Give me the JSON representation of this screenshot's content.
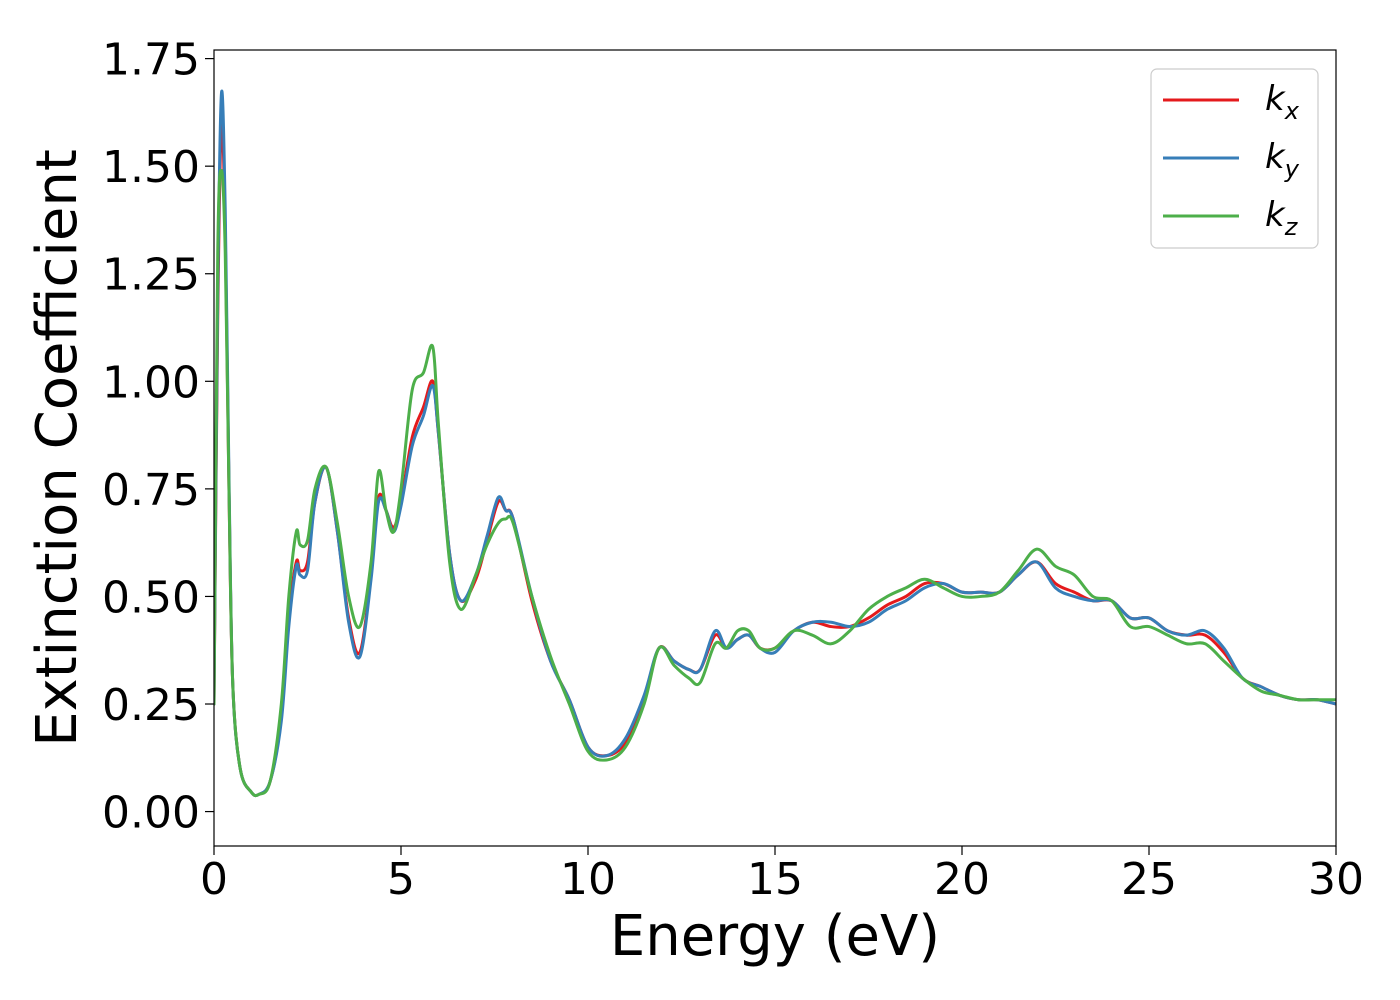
{
  "chart_data": {
    "type": "line",
    "xlabel": "Energy (eV)",
    "ylabel": "Extinction Coefficient",
    "xlim": [
      0,
      30
    ],
    "ylim": [
      -0.08,
      1.77
    ],
    "xticks": [
      0,
      5,
      10,
      15,
      20,
      25,
      30
    ],
    "xtick_labels": [
      "0",
      "5",
      "10",
      "15",
      "20",
      "25",
      "30"
    ],
    "yticks": [
      0.0,
      0.25,
      0.5,
      0.75,
      1.0,
      1.25,
      1.5,
      1.75
    ],
    "ytick_labels": [
      "0.00",
      "0.25",
      "0.50",
      "0.75",
      "1.00",
      "1.25",
      "1.50",
      "1.75"
    ],
    "grid": false,
    "legend_position": "top-right",
    "x": [
      0,
      0.1,
      0.2,
      0.3,
      0.4,
      0.5,
      0.7,
      1.0,
      1.2,
      1.5,
      1.8,
      2.0,
      2.2,
      2.3,
      2.5,
      2.7,
      3.0,
      3.3,
      3.6,
      3.9,
      4.2,
      4.4,
      4.6,
      4.8,
      5.0,
      5.3,
      5.6,
      5.85,
      6.0,
      6.3,
      6.6,
      7.0,
      7.3,
      7.6,
      7.8,
      8.0,
      8.5,
      9.0,
      9.5,
      10.0,
      10.5,
      11.0,
      11.5,
      11.9,
      12.3,
      12.7,
      13.0,
      13.4,
      13.7,
      14.0,
      14.3,
      14.6,
      15.0,
      15.5,
      16.0,
      16.5,
      17.0,
      17.5,
      18.0,
      18.5,
      19.0,
      19.5,
      20.0,
      20.5,
      21.0,
      21.5,
      22.0,
      22.5,
      23.0,
      23.5,
      24.0,
      24.5,
      25.0,
      25.5,
      26.0,
      26.5,
      27.0,
      27.5,
      28.0,
      28.5,
      29.0,
      29.5,
      30.0
    ],
    "series": [
      {
        "name": "k_x",
        "color": "#e41a1c",
        "values": [
          0.25,
          1.15,
          1.6,
          1.35,
          0.75,
          0.3,
          0.1,
          0.045,
          0.04,
          0.07,
          0.22,
          0.45,
          0.58,
          0.56,
          0.58,
          0.72,
          0.8,
          0.65,
          0.45,
          0.37,
          0.55,
          0.73,
          0.7,
          0.66,
          0.72,
          0.87,
          0.94,
          1.0,
          0.88,
          0.6,
          0.49,
          0.54,
          0.63,
          0.72,
          0.7,
          0.68,
          0.49,
          0.35,
          0.26,
          0.15,
          0.13,
          0.16,
          0.26,
          0.38,
          0.35,
          0.33,
          0.33,
          0.41,
          0.38,
          0.4,
          0.41,
          0.38,
          0.38,
          0.42,
          0.44,
          0.43,
          0.43,
          0.45,
          0.48,
          0.5,
          0.53,
          0.53,
          0.51,
          0.51,
          0.51,
          0.55,
          0.58,
          0.53,
          0.51,
          0.49,
          0.49,
          0.45,
          0.45,
          0.42,
          0.41,
          0.41,
          0.37,
          0.31,
          0.29,
          0.27,
          0.26,
          0.26,
          0.25
        ]
      },
      {
        "name": "k_y",
        "color": "#377eb8",
        "values": [
          0.25,
          1.2,
          1.67,
          1.4,
          0.78,
          0.3,
          0.1,
          0.045,
          0.04,
          0.07,
          0.21,
          0.43,
          0.57,
          0.55,
          0.56,
          0.72,
          0.8,
          0.65,
          0.44,
          0.36,
          0.54,
          0.72,
          0.7,
          0.65,
          0.71,
          0.85,
          0.92,
          0.99,
          0.88,
          0.6,
          0.49,
          0.55,
          0.64,
          0.73,
          0.7,
          0.68,
          0.5,
          0.35,
          0.26,
          0.15,
          0.13,
          0.17,
          0.27,
          0.38,
          0.35,
          0.33,
          0.33,
          0.42,
          0.38,
          0.4,
          0.41,
          0.38,
          0.37,
          0.42,
          0.44,
          0.44,
          0.43,
          0.44,
          0.47,
          0.49,
          0.52,
          0.53,
          0.51,
          0.51,
          0.51,
          0.55,
          0.58,
          0.52,
          0.5,
          0.49,
          0.49,
          0.45,
          0.45,
          0.42,
          0.41,
          0.42,
          0.38,
          0.31,
          0.29,
          0.27,
          0.26,
          0.26,
          0.25
        ]
      },
      {
        "name": "k_z",
        "color": "#4daf4a",
        "values": [
          0.25,
          1.3,
          1.49,
          1.3,
          0.75,
          0.3,
          0.1,
          0.045,
          0.04,
          0.07,
          0.25,
          0.5,
          0.65,
          0.62,
          0.63,
          0.75,
          0.8,
          0.67,
          0.5,
          0.43,
          0.58,
          0.79,
          0.7,
          0.65,
          0.75,
          0.98,
          1.02,
          1.08,
          0.9,
          0.58,
          0.47,
          0.55,
          0.62,
          0.67,
          0.68,
          0.67,
          0.5,
          0.36,
          0.25,
          0.14,
          0.12,
          0.15,
          0.25,
          0.38,
          0.34,
          0.31,
          0.3,
          0.39,
          0.38,
          0.42,
          0.42,
          0.38,
          0.38,
          0.42,
          0.41,
          0.39,
          0.42,
          0.47,
          0.5,
          0.52,
          0.54,
          0.52,
          0.5,
          0.5,
          0.51,
          0.56,
          0.61,
          0.57,
          0.55,
          0.5,
          0.49,
          0.43,
          0.43,
          0.41,
          0.39,
          0.39,
          0.35,
          0.31,
          0.28,
          0.27,
          0.26,
          0.26,
          0.26
        ]
      }
    ]
  },
  "legend": {
    "items": [
      {
        "base": "k",
        "sub": "x",
        "color": "#e41a1c"
      },
      {
        "base": "k",
        "sub": "y",
        "color": "#377eb8"
      },
      {
        "base": "k",
        "sub": "z",
        "color": "#4daf4a"
      }
    ]
  }
}
